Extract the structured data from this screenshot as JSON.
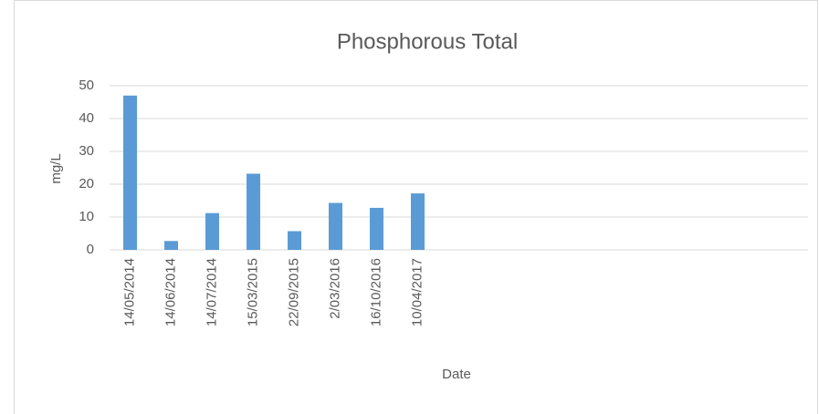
{
  "chart_data": {
    "type": "bar",
    "title": "Phosphorous Total",
    "xlabel": "Date",
    "ylabel": "mg/L",
    "categories": [
      "14/05/2014",
      "14/06/2014",
      "14/07/2014",
      "15/03/2015",
      "22/09/2015",
      "2/03/2016",
      "16/10/2016",
      "10/04/2017",
      null,
      null,
      null,
      null,
      null,
      null,
      null,
      null,
      null
    ],
    "values": [
      47,
      2.7,
      11.2,
      23.2,
      5.7,
      14.3,
      12.8,
      17.2,
      null,
      null,
      null,
      null,
      null,
      null,
      null,
      null,
      null
    ],
    "color": "#5b9bd5",
    "ylim": [
      0,
      50
    ],
    "yticks": [
      0,
      10,
      20,
      30,
      40,
      50
    ],
    "grid": true
  }
}
